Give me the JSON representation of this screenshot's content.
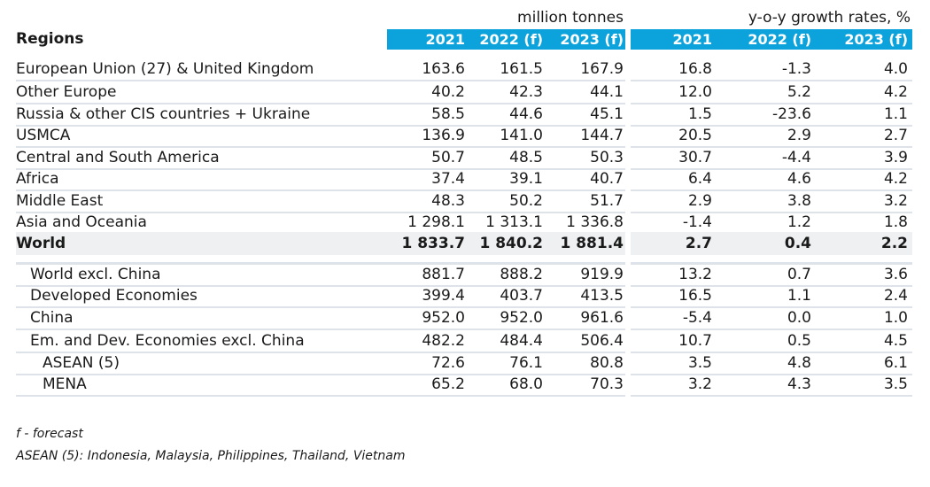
{
  "header": {
    "units_left": "million tonnes",
    "units_right": "y-o-y growth rates, %",
    "regions_label": "Regions",
    "columns": [
      "2021",
      "2022 (f)",
      "2023 (f)",
      "2021",
      "2022 (f)",
      "2023 (f)"
    ],
    "band_color": "#0ca3dc"
  },
  "rows": [
    {
      "label": "European Union (27) & United Kingdom",
      "values": [
        "163.6",
        "161.5",
        "167.9",
        "16.8",
        "-1.3",
        "4.0"
      ]
    },
    {
      "label": "Other Europe",
      "values": [
        "40.2",
        "42.3",
        "44.1",
        "12.0",
        "5.2",
        "4.2"
      ]
    },
    {
      "label": "Russia & other CIS countries + Ukraine",
      "values": [
        "58.5",
        "44.6",
        "45.1",
        "1.5",
        "-23.6",
        "1.1"
      ]
    },
    {
      "label": "USMCA",
      "values": [
        "136.9",
        "141.0",
        "144.7",
        "20.5",
        "2.9",
        "2.7"
      ]
    },
    {
      "label": "Central and South America",
      "values": [
        "50.7",
        "48.5",
        "50.3",
        "30.7",
        "-4.4",
        "3.9"
      ]
    },
    {
      "label": "Africa",
      "values": [
        "37.4",
        "39.1",
        "40.7",
        "6.4",
        "4.6",
        "4.2"
      ]
    },
    {
      "label": "Middle East",
      "values": [
        "48.3",
        "50.2",
        "51.7",
        "2.9",
        "3.8",
        "3.2"
      ]
    },
    {
      "label": "Asia and Oceania",
      "values": [
        "1 298.1",
        "1 313.1",
        "1 336.8",
        "-1.4",
        "1.2",
        "1.8"
      ]
    },
    {
      "label": "World",
      "values": [
        "1 833.7",
        "1 840.2",
        "1 881.4",
        "2.7",
        "0.4",
        "2.2"
      ],
      "bold": true
    },
    {
      "label": "World excl. China",
      "values": [
        "881.7",
        "888.2",
        "919.9",
        "13.2",
        "0.7",
        "3.6"
      ],
      "indent": 1
    },
    {
      "label": "Developed Economies",
      "values": [
        "399.4",
        "403.7",
        "413.5",
        "16.5",
        "1.1",
        "2.4"
      ],
      "indent": 1
    },
    {
      "label": "China",
      "values": [
        "952.0",
        "952.0",
        "961.6",
        "-5.4",
        "0.0",
        "1.0"
      ],
      "indent": 1
    },
    {
      "label": "Em. and Dev. Economies excl. China",
      "values": [
        "482.2",
        "484.4",
        "506.4",
        "10.7",
        "0.5",
        "4.5"
      ],
      "indent": 1
    },
    {
      "label": "ASEAN (5)",
      "values": [
        "72.6",
        "76.1",
        "80.8",
        "3.5",
        "4.8",
        "6.1"
      ],
      "indent": 2
    },
    {
      "label": "MENA",
      "values": [
        "65.2",
        "68.0",
        "70.3",
        "3.2",
        "4.3",
        "3.5"
      ],
      "indent": 2
    }
  ],
  "footnotes": {
    "forecast": "f - forecast",
    "asean": "ASEAN (5): Indonesia, Malaysia, Philippines, Thailand, Vietnam"
  }
}
